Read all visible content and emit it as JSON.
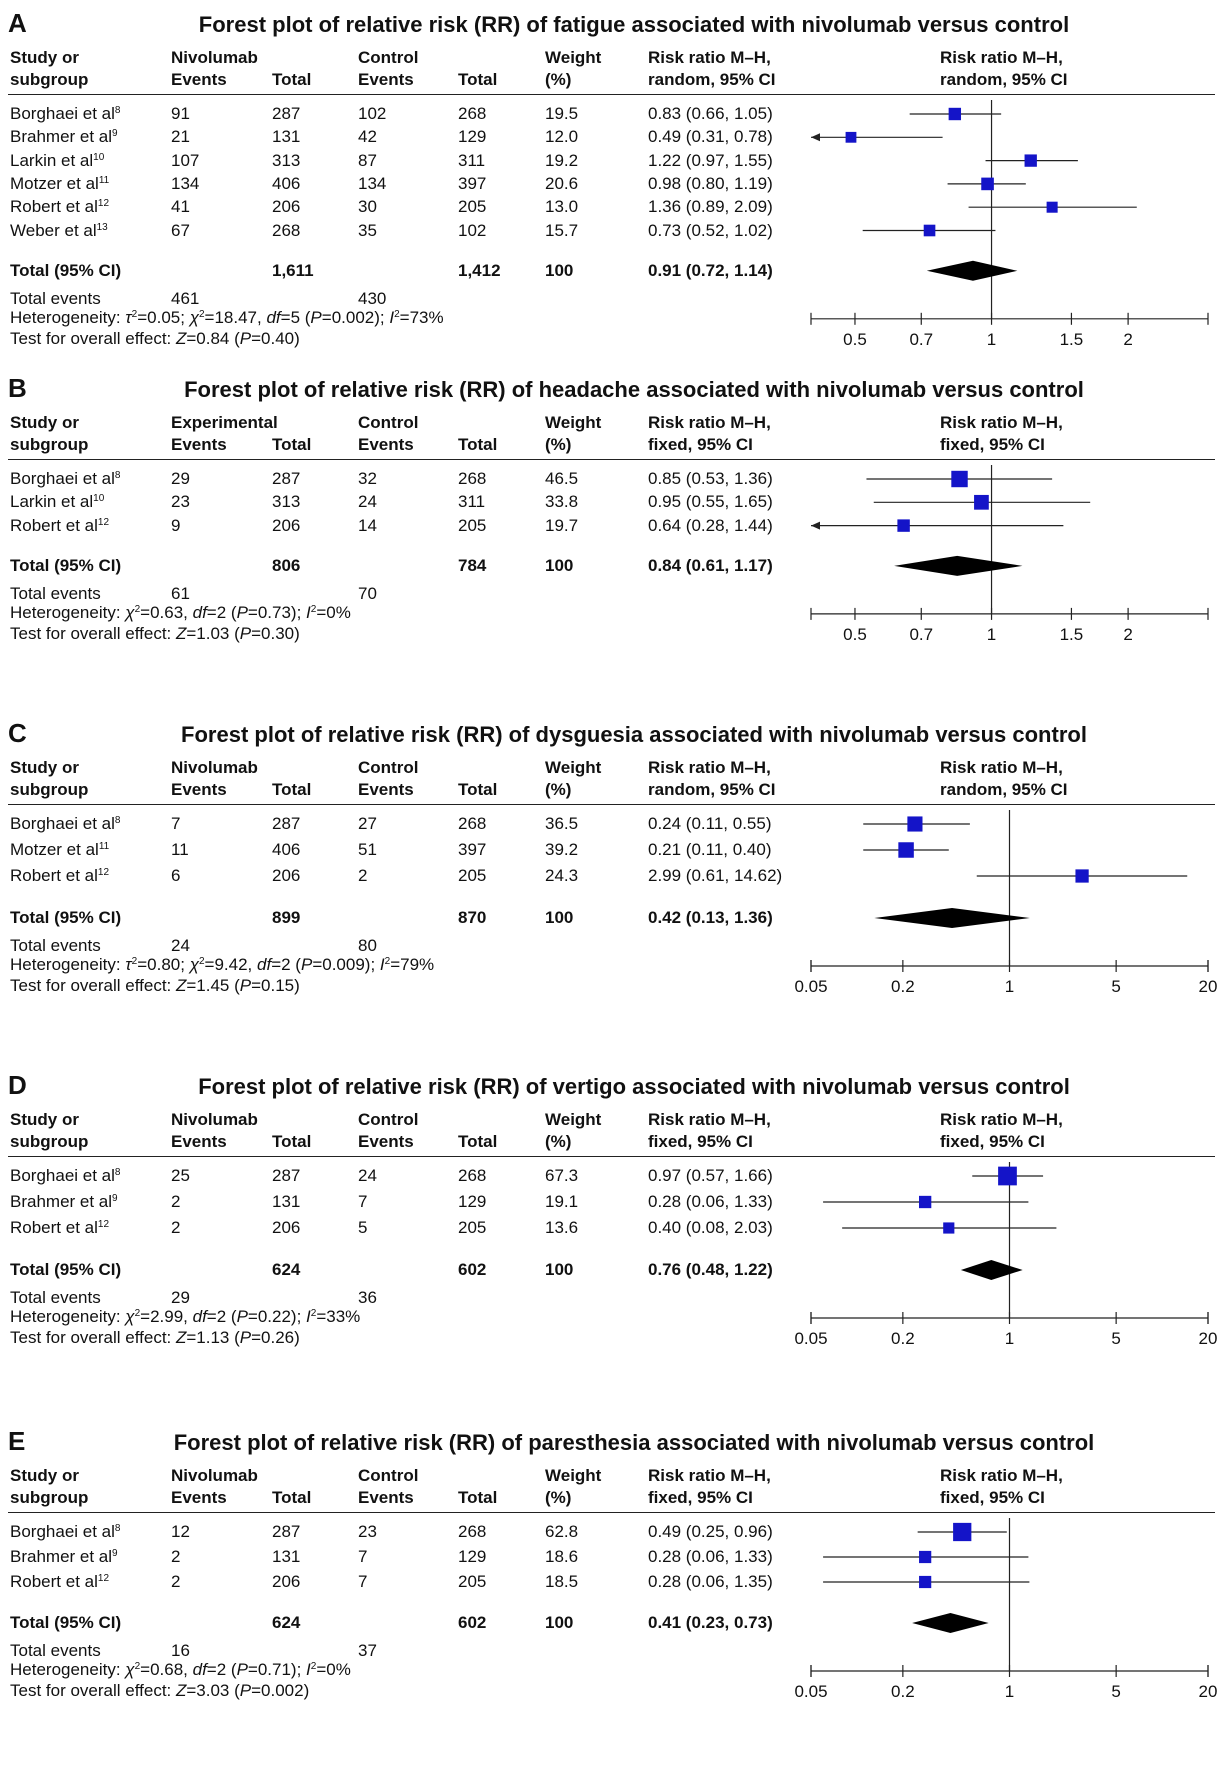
{
  "chart_data": [
    {
      "type": "forest",
      "letter": "A",
      "title": "Forest plot of relative risk (RR) of fatigue associated with nivolumab versus control",
      "header": {
        "study_line1": "Study or",
        "study_line2": "subgroup",
        "group1": "Nivolumab",
        "events": "Events",
        "total": "Total",
        "group2": "Control",
        "weight_line1": "Weight",
        "weight_line2": "(%)",
        "rr_line1": "Risk ratio M–H,",
        "rr_line2": "random, 95% CI",
        "plot_line1": "Risk ratio M–H,",
        "plot_line2": "random, 95% CI"
      },
      "scale": [
        0.4,
        3.0
      ],
      "ticks": [
        "0.5",
        "0.7",
        "1",
        "1.5",
        "2"
      ],
      "studies": [
        {
          "name": "Borghaei et al",
          "ref": "8",
          "e1": "91",
          "t1": "287",
          "e2": "102",
          "t2": "268",
          "weight": "19.5",
          "ci_text": "0.83 (0.66, 1.05)",
          "rr": 0.83,
          "lo": 0.66,
          "hi": 1.05
        },
        {
          "name": "Brahmer et al",
          "ref": "9",
          "e1": "21",
          "t1": "131",
          "e2": "42",
          "t2": "129",
          "weight": "12.0",
          "ci_text": "0.49 (0.31, 0.78)",
          "rr": 0.49,
          "lo": 0.31,
          "hi": 0.78
        },
        {
          "name": "Larkin et al",
          "ref": "10",
          "e1": "107",
          "t1": "313",
          "e2": "87",
          "t2": "311",
          "weight": "19.2",
          "ci_text": "1.22 (0.97, 1.55)",
          "rr": 1.22,
          "lo": 0.97,
          "hi": 1.55
        },
        {
          "name": "Motzer et al",
          "ref": "11",
          "e1": "134",
          "t1": "406",
          "e2": "134",
          "t2": "397",
          "weight": "20.6",
          "ci_text": "0.98 (0.80, 1.19)",
          "rr": 0.98,
          "lo": 0.8,
          "hi": 1.19
        },
        {
          "name": "Robert et al",
          "ref": "12",
          "e1": "41",
          "t1": "206",
          "e2": "30",
          "t2": "205",
          "weight": "13.0",
          "ci_text": "1.36 (0.89, 2.09)",
          "rr": 1.36,
          "lo": 0.89,
          "hi": 2.09
        },
        {
          "name": "Weber et al",
          "ref": "13",
          "e1": "67",
          "t1": "268",
          "e2": "35",
          "t2": "102",
          "weight": "15.7",
          "ci_text": "0.73 (0.52, 1.02)",
          "rr": 0.73,
          "lo": 0.52,
          "hi": 1.02
        }
      ],
      "total": {
        "label": "Total (95% CI)",
        "t1": "1,611",
        "t2": "1,412",
        "weight": "100",
        "ci_text": "0.91 (0.72, 1.14)",
        "rr": 0.91,
        "lo": 0.72,
        "hi": 1.14
      },
      "events": {
        "label": "Total events",
        "e1": "461",
        "e2": "430"
      },
      "heterogeneity": "Heterogeneity: <i>τ</i><sup>2</sup>=0.05; <i>χ</i><sup>2</sup>=18.47, <i>df</i>=5 (<i>P</i>=0.002); <i>I</i><sup>2</sup>=73%",
      "overall_effect": "Test for overall effect: <i>Z</i>=0.84 (<i>P</i>=0.40)"
    },
    {
      "type": "forest",
      "letter": "B",
      "title": "Forest plot of relative risk (RR) of headache associated with nivolumab versus control",
      "header": {
        "study_line1": "Study or",
        "study_line2": "subgroup",
        "group1": "Experimental",
        "events": "Events",
        "total": "Total",
        "group2": "Control",
        "weight_line1": "Weight",
        "weight_line2": "(%)",
        "rr_line1": "Risk ratio M–H,",
        "rr_line2": "fixed, 95% CI",
        "plot_line1": "Risk ratio M–H,",
        "plot_line2": "fixed, 95% CI"
      },
      "scale": [
        0.4,
        3.0
      ],
      "ticks": [
        "0.5",
        "0.7",
        "1",
        "1.5",
        "2"
      ],
      "studies": [
        {
          "name": "Borghaei et al",
          "ref": "8",
          "e1": "29",
          "t1": "287",
          "e2": "32",
          "t2": "268",
          "weight": "46.5",
          "ci_text": "0.85 (0.53, 1.36)",
          "rr": 0.85,
          "lo": 0.53,
          "hi": 1.36
        },
        {
          "name": "Larkin et al",
          "ref": "10",
          "e1": "23",
          "t1": "313",
          "e2": "24",
          "t2": "311",
          "weight": "33.8",
          "ci_text": "0.95 (0.55, 1.65)",
          "rr": 0.95,
          "lo": 0.55,
          "hi": 1.65
        },
        {
          "name": "Robert et al",
          "ref": "12",
          "e1": "9",
          "t1": "206",
          "e2": "14",
          "t2": "205",
          "weight": "19.7",
          "ci_text": "0.64 (0.28, 1.44)",
          "rr": 0.64,
          "lo": 0.28,
          "hi": 1.44
        }
      ],
      "total": {
        "label": "Total (95% CI)",
        "t1": "806",
        "t2": "784",
        "weight": "100",
        "ci_text": "0.84 (0.61, 1.17)",
        "rr": 0.84,
        "lo": 0.61,
        "hi": 1.17
      },
      "events": {
        "label": "Total events",
        "e1": "61",
        "e2": "70"
      },
      "heterogeneity": "Heterogeneity: <i>χ</i><sup>2</sup>=0.63, <i>df</i>=2 (<i>P</i>=0.73); <i>I</i><sup>2</sup>=0%",
      "overall_effect": "Test for overall effect: <i>Z</i>=1.03 (<i>P</i>=0.30)"
    },
    {
      "type": "forest",
      "letter": "C",
      "title": "Forest plot of relative risk (RR) of dysguesia associated with nivolumab versus control",
      "header": {
        "study_line1": "Study or",
        "study_line2": "subgroup",
        "group1": "Nivolumab",
        "events": "Events",
        "total": "Total",
        "group2": "Control",
        "weight_line1": "Weight",
        "weight_line2": "(%)",
        "rr_line1": "Risk ratio M–H,",
        "rr_line2": "random, 95% CI",
        "plot_line1": "Risk ratio M–H,",
        "plot_line2": "random, 95% CI"
      },
      "scale": [
        0.05,
        20
      ],
      "ticks": [
        "0.05",
        "0.2",
        "1",
        "5",
        "20"
      ],
      "studies": [
        {
          "name": "Borghaei et al",
          "ref": "8",
          "e1": "7",
          "t1": "287",
          "e2": "27",
          "t2": "268",
          "weight": "36.5",
          "ci_text": "0.24 (0.11, 0.55)",
          "rr": 0.24,
          "lo": 0.11,
          "hi": 0.55
        },
        {
          "name": "Motzer et al",
          "ref": "11",
          "e1": "11",
          "t1": "406",
          "e2": "51",
          "t2": "397",
          "weight": "39.2",
          "ci_text": "0.21 (0.11, 0.40)",
          "rr": 0.21,
          "lo": 0.11,
          "hi": 0.4
        },
        {
          "name": "Robert et al",
          "ref": "12",
          "e1": "6",
          "t1": "206",
          "e2": "2",
          "t2": "205",
          "weight": "24.3",
          "ci_text": "2.99 (0.61, 14.62)",
          "rr": 2.99,
          "lo": 0.61,
          "hi": 14.62
        }
      ],
      "total": {
        "label": "Total (95% CI)",
        "t1": "899",
        "t2": "870",
        "weight": "100",
        "ci_text": "0.42 (0.13, 1.36)",
        "rr": 0.42,
        "lo": 0.13,
        "hi": 1.36
      },
      "events": {
        "label": "Total events",
        "e1": "24",
        "e2": "80"
      },
      "heterogeneity": "Heterogeneity: <i>τ</i><sup>2</sup>=0.80; <i>χ</i><sup>2</sup>=9.42, <i>df</i>=2 (<i>P</i>=0.009); <i>I</i><sup>2</sup>=79%",
      "overall_effect": "Test for overall effect: <i>Z</i>=1.45 (<i>P</i>=0.15)"
    },
    {
      "type": "forest",
      "letter": "D",
      "title": "Forest plot of relative risk (RR) of vertigo associated with nivolumab versus control",
      "header": {
        "study_line1": "Study or",
        "study_line2": "subgroup",
        "group1": "Nivolumab",
        "events": "Events",
        "total": "Total",
        "group2": "Control",
        "weight_line1": "Weight",
        "weight_line2": "(%)",
        "rr_line1": "Risk ratio M–H,",
        "rr_line2": "fixed, 95% CI",
        "plot_line1": "Risk ratio M–H,",
        "plot_line2": "fixed, 95% CI"
      },
      "scale": [
        0.05,
        20
      ],
      "ticks": [
        "0.05",
        "0.2",
        "1",
        "5",
        "20"
      ],
      "studies": [
        {
          "name": "Borghaei et al",
          "ref": "8",
          "e1": "25",
          "t1": "287",
          "e2": "24",
          "t2": "268",
          "weight": "67.3",
          "ci_text": "0.97 (0.57, 1.66)",
          "rr": 0.97,
          "lo": 0.57,
          "hi": 1.66
        },
        {
          "name": "Brahmer et al",
          "ref": "9",
          "e1": "2",
          "t1": "131",
          "e2": "7",
          "t2": "129",
          "weight": "19.1",
          "ci_text": "0.28 (0.06, 1.33)",
          "rr": 0.28,
          "lo": 0.06,
          "hi": 1.33
        },
        {
          "name": "Robert et al",
          "ref": "12",
          "e1": "2",
          "t1": "206",
          "e2": "5",
          "t2": "205",
          "weight": "13.6",
          "ci_text": "0.40 (0.08, 2.03)",
          "rr": 0.4,
          "lo": 0.08,
          "hi": 2.03
        }
      ],
      "total": {
        "label": "Total (95% CI)",
        "t1": "624",
        "t2": "602",
        "weight": "100",
        "ci_text": "0.76 (0.48, 1.22)",
        "rr": 0.76,
        "lo": 0.48,
        "hi": 1.22
      },
      "events": {
        "label": "Total events",
        "e1": "29",
        "e2": "36"
      },
      "heterogeneity": "Heterogeneity: <i>χ</i><sup>2</sup>=2.99, <i>df</i>=2 (<i>P</i>=0.22); <i>I</i><sup>2</sup>=33%",
      "overall_effect": "Test for overall effect: <i>Z</i>=1.13 (<i>P</i>=0.26)"
    },
    {
      "type": "forest",
      "letter": "E",
      "title": "Forest plot of relative risk (RR) of paresthesia associated with nivolumab versus control",
      "header": {
        "study_line1": "Study or",
        "study_line2": "subgroup",
        "group1": "Nivolumab",
        "events": "Events",
        "total": "Total",
        "group2": "Control",
        "weight_line1": "Weight",
        "weight_line2": "(%)",
        "rr_line1": "Risk ratio M–H,",
        "rr_line2": "fixed, 95% CI",
        "plot_line1": "Risk ratio M–H,",
        "plot_line2": "fixed, 95% CI"
      },
      "scale": [
        0.05,
        20
      ],
      "ticks": [
        "0.05",
        "0.2",
        "1",
        "5",
        "20"
      ],
      "studies": [
        {
          "name": "Borghaei et al",
          "ref": "8",
          "e1": "12",
          "t1": "287",
          "e2": "23",
          "t2": "268",
          "weight": "62.8",
          "ci_text": "0.49 (0.25, 0.96)",
          "rr": 0.49,
          "lo": 0.25,
          "hi": 0.96
        },
        {
          "name": "Brahmer et al",
          "ref": "9",
          "e1": "2",
          "t1": "131",
          "e2": "7",
          "t2": "129",
          "weight": "18.6",
          "ci_text": "0.28 (0.06, 1.33)",
          "rr": 0.28,
          "lo": 0.06,
          "hi": 1.33
        },
        {
          "name": "Robert et al",
          "ref": "12",
          "e1": "2",
          "t1": "206",
          "e2": "7",
          "t2": "205",
          "weight": "18.5",
          "ci_text": "0.28 (0.06, 1.35)",
          "rr": 0.28,
          "lo": 0.06,
          "hi": 1.35
        }
      ],
      "total": {
        "label": "Total (95% CI)",
        "t1": "624",
        "t2": "602",
        "weight": "100",
        "ci_text": "0.41 (0.23, 0.73)",
        "rr": 0.41,
        "lo": 0.23,
        "hi": 0.73
      },
      "events": {
        "label": "Total events",
        "e1": "16",
        "e2": "37"
      },
      "heterogeneity": "Heterogeneity: <i>χ</i><sup>2</sup>=0.68, <i>df</i>=2 (<i>P</i>=0.71); <i>I</i><sup>2</sup>=0%",
      "overall_effect": "Test for overall effect: <i>Z</i>=3.03 (<i>P</i>=0.002)"
    }
  ],
  "colors": {
    "marker": "#1414c8",
    "text": "#111111",
    "line": "#222222"
  }
}
